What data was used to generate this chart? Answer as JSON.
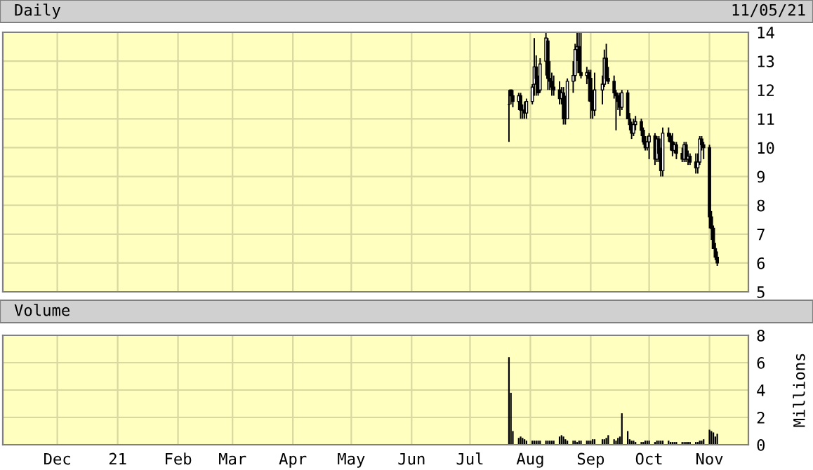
{
  "chart_data": [
    {
      "type": "candlestick",
      "title": "Daily",
      "annotations": [
        "11/05/21"
      ],
      "color": "#000000",
      "x": [
        "2021-07-21",
        "2021-07-22",
        "2021-07-23",
        "2021-07-26",
        "2021-07-27",
        "2021-07-28",
        "2021-07-29",
        "2021-07-30",
        "2021-08-02",
        "2021-08-03",
        "2021-08-04",
        "2021-08-05",
        "2021-08-06",
        "2021-08-09",
        "2021-08-10",
        "2021-08-11",
        "2021-08-12",
        "2021-08-13",
        "2021-08-16",
        "2021-08-17",
        "2021-08-18",
        "2021-08-19",
        "2021-08-20",
        "2021-08-23",
        "2021-08-24",
        "2021-08-25",
        "2021-08-26",
        "2021-08-27",
        "2021-08-30",
        "2021-08-31",
        "2021-09-01",
        "2021-09-02",
        "2021-09-03",
        "2021-09-07",
        "2021-09-08",
        "2021-09-09",
        "2021-09-10",
        "2021-09-13",
        "2021-09-14",
        "2021-09-15",
        "2021-09-16",
        "2021-09-17",
        "2021-09-20",
        "2021-09-21",
        "2021-09-22",
        "2021-09-23",
        "2021-09-24",
        "2021-09-27",
        "2021-09-28",
        "2021-09-29",
        "2021-09-30",
        "2021-10-01",
        "2021-10-04",
        "2021-10-05",
        "2021-10-06",
        "2021-10-07",
        "2021-10-08",
        "2021-10-11",
        "2021-10-12",
        "2021-10-13",
        "2021-10-14",
        "2021-10-15",
        "2021-10-18",
        "2021-10-19",
        "2021-10-20",
        "2021-10-21",
        "2021-10-22",
        "2021-10-25",
        "2021-10-26",
        "2021-10-27",
        "2021-10-28",
        "2021-10-29",
        "2021-11-01",
        "2021-11-02",
        "2021-11-03",
        "2021-11-04",
        "2021-11-05"
      ],
      "ohlc": [
        [
          11.5,
          12.0,
          10.2,
          11.5
        ],
        [
          12.0,
          12.0,
          11.5,
          11.8
        ],
        [
          11.8,
          12.0,
          11.4,
          11.6
        ],
        [
          11.6,
          11.9,
          11.3,
          11.8
        ],
        [
          11.8,
          11.9,
          11.0,
          11.3
        ],
        [
          11.3,
          11.5,
          11.0,
          11.3
        ],
        [
          11.3,
          11.6,
          11.0,
          11.2
        ],
        [
          11.2,
          11.7,
          11.0,
          11.6
        ],
        [
          11.6,
          12.2,
          11.5,
          12.1
        ],
        [
          12.2,
          13.8,
          11.8,
          12.8
        ],
        [
          12.8,
          13.2,
          11.8,
          12.4
        ],
        [
          12.4,
          12.5,
          11.8,
          11.9
        ],
        [
          12.0,
          13.1,
          11.9,
          12.9
        ],
        [
          13.0,
          14.0,
          12.5,
          13.8
        ],
        [
          13.7,
          13.8,
          12.0,
          12.4
        ],
        [
          12.4,
          13.0,
          12.0,
          12.3
        ],
        [
          12.3,
          12.6,
          11.8,
          12.1
        ],
        [
          12.1,
          12.5,
          11.8,
          12.0
        ],
        [
          12.0,
          12.3,
          11.5,
          11.7
        ],
        [
          11.7,
          12.1,
          11.5,
          11.9
        ],
        [
          11.9,
          12.1,
          10.8,
          11.0
        ],
        [
          11.0,
          11.8,
          10.8,
          11.0
        ],
        [
          11.0,
          12.4,
          11.0,
          12.3
        ],
        [
          12.3,
          13.0,
          11.9,
          12.5
        ],
        [
          12.5,
          13.6,
          12.3,
          13.4
        ],
        [
          13.4,
          14.0,
          13.0,
          13.5
        ],
        [
          13.5,
          14.0,
          12.6,
          12.6
        ],
        [
          12.6,
          14.0,
          12.4,
          12.5
        ],
        [
          12.5,
          12.8,
          12.2,
          12.6
        ],
        [
          12.6,
          12.7,
          11.6,
          12.4
        ],
        [
          12.4,
          12.7,
          11.0,
          11.6
        ],
        [
          11.6,
          12.0,
          11.0,
          11.3
        ],
        [
          11.3,
          12.6,
          11.1,
          12.0
        ],
        [
          12.0,
          12.5,
          11.5,
          12.2
        ],
        [
          12.2,
          13.4,
          12.1,
          13.1
        ],
        [
          13.1,
          13.6,
          12.3,
          12.4
        ],
        [
          12.4,
          12.8,
          12.2,
          12.3
        ],
        [
          12.3,
          12.5,
          11.7,
          11.9
        ],
        [
          11.9,
          12.0,
          10.6,
          11.8
        ],
        [
          11.8,
          11.9,
          11.3,
          11.6
        ],
        [
          11.6,
          11.9,
          11.1,
          11.4
        ],
        [
          11.4,
          12.0,
          11.3,
          11.9
        ],
        [
          11.9,
          12.0,
          11.0,
          11.0
        ],
        [
          11.0,
          11.2,
          10.6,
          10.8
        ],
        [
          10.8,
          10.9,
          10.3,
          10.5
        ],
        [
          10.5,
          11.0,
          10.4,
          10.8
        ],
        [
          10.8,
          11.1,
          10.6,
          10.9
        ],
        [
          10.9,
          11.0,
          10.4,
          10.6
        ],
        [
          10.6,
          10.7,
          10.1,
          10.2
        ],
        [
          10.2,
          10.4,
          9.9,
          10.0
        ],
        [
          10.0,
          10.4,
          9.9,
          10.2
        ],
        [
          10.2,
          10.5,
          9.6,
          10.4
        ],
        [
          10.4,
          10.5,
          9.4,
          9.6
        ],
        [
          9.6,
          10.4,
          9.5,
          10.3
        ],
        [
          10.3,
          10.4,
          9.5,
          9.8
        ],
        [
          9.8,
          10.0,
          9.0,
          9.2
        ],
        [
          9.2,
          10.7,
          9.0,
          10.5
        ],
        [
          10.5,
          10.7,
          10.2,
          10.4
        ],
        [
          10.4,
          10.5,
          9.9,
          10.2
        ],
        [
          10.2,
          10.5,
          9.7,
          9.9
        ],
        [
          9.9,
          10.2,
          9.8,
          10.1
        ],
        [
          10.1,
          10.2,
          9.6,
          9.8
        ],
        [
          9.8,
          10.0,
          9.5,
          9.6
        ],
        [
          9.6,
          10.2,
          9.5,
          10.1
        ],
        [
          10.1,
          10.2,
          9.5,
          9.6
        ],
        [
          9.6,
          9.9,
          9.4,
          9.7
        ],
        [
          9.7,
          9.8,
          9.4,
          9.5
        ],
        [
          9.5,
          9.8,
          9.1,
          9.3
        ],
        [
          9.3,
          9.8,
          9.1,
          9.5
        ],
        [
          9.5,
          10.4,
          9.4,
          10.3
        ],
        [
          10.3,
          10.4,
          9.9,
          10.1
        ],
        [
          10.1,
          10.2,
          9.6,
          10.0
        ],
        [
          10.0,
          10.1,
          7.2,
          7.6
        ],
        [
          7.6,
          7.8,
          6.8,
          7.2
        ],
        [
          7.2,
          7.3,
          6.5,
          6.5
        ],
        [
          6.5,
          6.7,
          6.1,
          6.2
        ],
        [
          6.2,
          6.4,
          5.9,
          6.0
        ]
      ],
      "xlim": [
        "2020-11-03",
        "2021-11-21"
      ],
      "xticks": [
        {
          "value": "2020-12-01",
          "label": null
        },
        {
          "value": "2021-01-01",
          "label": null
        },
        {
          "value": "2021-02-01",
          "label": null
        },
        {
          "value": "2021-03-01",
          "label": null
        },
        {
          "value": "2021-04-01",
          "label": null
        },
        {
          "value": "2021-05-01",
          "label": null
        },
        {
          "value": "2021-06-01",
          "label": null
        },
        {
          "value": "2021-07-01",
          "label": null
        },
        {
          "value": "2021-08-01",
          "label": null
        },
        {
          "value": "2021-09-01",
          "label": null
        },
        {
          "value": "2021-10-01",
          "label": null
        },
        {
          "value": "2021-11-01",
          "label": null
        }
      ],
      "ylim": [
        5,
        14
      ],
      "yticks": [
        5,
        6,
        7,
        8,
        9,
        10,
        11,
        12,
        13,
        14
      ],
      "grid": true,
      "tick_labels": "y"
    },
    {
      "type": "bar",
      "title": "Volume",
      "ylabel": "Millions",
      "color": "#000000",
      "x": [
        "2021-07-21",
        "2021-07-22",
        "2021-07-23",
        "2021-07-26",
        "2021-07-27",
        "2021-07-28",
        "2021-07-29",
        "2021-07-30",
        "2021-08-02",
        "2021-08-03",
        "2021-08-04",
        "2021-08-05",
        "2021-08-06",
        "2021-08-09",
        "2021-08-10",
        "2021-08-11",
        "2021-08-12",
        "2021-08-13",
        "2021-08-16",
        "2021-08-17",
        "2021-08-18",
        "2021-08-19",
        "2021-08-20",
        "2021-08-23",
        "2021-08-24",
        "2021-08-25",
        "2021-08-26",
        "2021-08-27",
        "2021-08-30",
        "2021-08-31",
        "2021-09-01",
        "2021-09-02",
        "2021-09-03",
        "2021-09-07",
        "2021-09-08",
        "2021-09-09",
        "2021-09-10",
        "2021-09-13",
        "2021-09-14",
        "2021-09-15",
        "2021-09-16",
        "2021-09-17",
        "2021-09-20",
        "2021-09-21",
        "2021-09-22",
        "2021-09-23",
        "2021-09-24",
        "2021-09-27",
        "2021-09-28",
        "2021-09-29",
        "2021-09-30",
        "2021-10-01",
        "2021-10-04",
        "2021-10-05",
        "2021-10-06",
        "2021-10-07",
        "2021-10-08",
        "2021-10-11",
        "2021-10-12",
        "2021-10-13",
        "2021-10-14",
        "2021-10-15",
        "2021-10-18",
        "2021-10-19",
        "2021-10-20",
        "2021-10-21",
        "2021-10-22",
        "2021-10-25",
        "2021-10-26",
        "2021-10-27",
        "2021-10-28",
        "2021-10-29",
        "2021-11-01",
        "2021-11-02",
        "2021-11-03",
        "2021-11-04",
        "2021-11-05"
      ],
      "values": [
        6.4,
        3.8,
        1.0,
        0.5,
        0.6,
        0.5,
        0.4,
        0.3,
        0.3,
        0.3,
        0.3,
        0.3,
        0.3,
        0.3,
        0.3,
        0.3,
        0.3,
        0.3,
        0.6,
        0.7,
        0.6,
        0.4,
        0.3,
        0.3,
        0.3,
        0.2,
        0.3,
        0.3,
        0.3,
        0.3,
        0.3,
        0.4,
        0.4,
        0.4,
        0.4,
        0.5,
        0.7,
        0.4,
        0.3,
        0.5,
        0.6,
        2.3,
        1.0,
        0.4,
        0.3,
        0.3,
        0.2,
        0.2,
        0.2,
        0.3,
        0.3,
        0.3,
        0.2,
        0.3,
        0.3,
        0.3,
        0.3,
        0.3,
        0.2,
        0.2,
        0.2,
        0.2,
        0.2,
        0.2,
        0.2,
        0.2,
        0.2,
        0.2,
        0.2,
        0.3,
        0.3,
        0.4,
        1.1,
        1.0,
        0.9,
        0.6,
        0.8
      ],
      "xlim": [
        "2020-11-03",
        "2021-11-21"
      ],
      "xticks": [
        {
          "value": "2020-12-01",
          "label": "Dec"
        },
        {
          "value": "2021-01-01",
          "label": "21"
        },
        {
          "value": "2021-02-01",
          "label": "Feb"
        },
        {
          "value": "2021-03-01",
          "label": "Mar"
        },
        {
          "value": "2021-04-01",
          "label": "Apr"
        },
        {
          "value": "2021-05-01",
          "label": "May"
        },
        {
          "value": "2021-06-01",
          "label": "Jun"
        },
        {
          "value": "2021-07-01",
          "label": "Jul"
        },
        {
          "value": "2021-08-01",
          "label": "Aug"
        },
        {
          "value": "2021-09-01",
          "label": "Sep"
        },
        {
          "value": "2021-10-01",
          "label": "Oct"
        },
        {
          "value": "2021-11-01",
          "label": "Nov"
        }
      ],
      "ylim": [
        0,
        8
      ],
      "yticks": [
        0,
        2,
        4,
        6,
        8
      ],
      "grid": true
    }
  ]
}
